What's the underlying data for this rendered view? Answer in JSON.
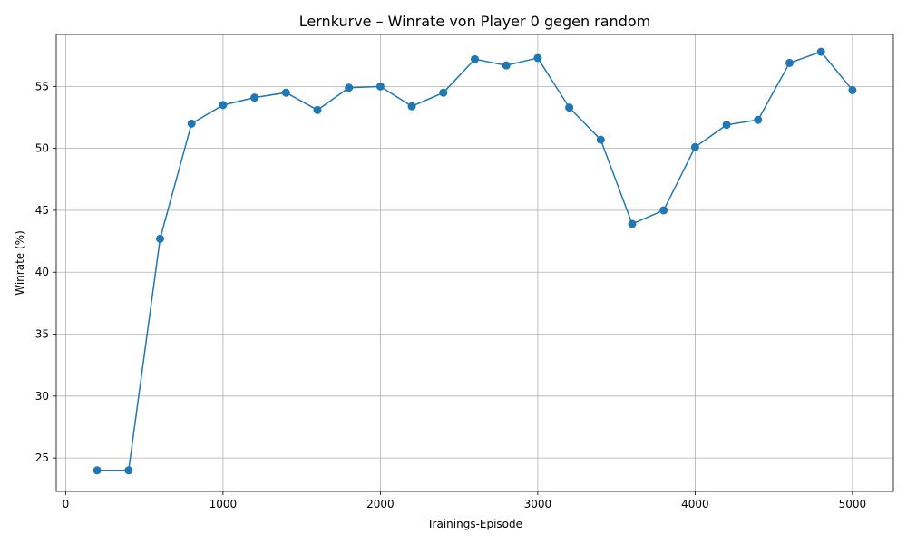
{
  "chart_data": {
    "type": "line",
    "title": "Lernkurve – Winrate von Player 0 gegen random",
    "xlabel": "Trainings-Episode",
    "ylabel": "Winrate (%)",
    "xlim": [
      -60,
      5260
    ],
    "ylim": [
      22.3,
      59.2
    ],
    "xticks": [
      0,
      1000,
      2000,
      3000,
      4000,
      5000
    ],
    "yticks": [
      25,
      30,
      35,
      40,
      45,
      50,
      55
    ],
    "grid": true,
    "series_color": "#1f77b4",
    "marker": "circle",
    "x": [
      200,
      400,
      600,
      800,
      1000,
      1200,
      1400,
      1600,
      1800,
      2000,
      2200,
      2400,
      2600,
      2800,
      3000,
      3200,
      3400,
      3600,
      3800,
      4000,
      4200,
      4400,
      4600,
      4800,
      5000
    ],
    "y": [
      24.0,
      24.0,
      42.7,
      52.0,
      53.5,
      54.1,
      54.5,
      53.1,
      54.9,
      55.0,
      53.4,
      54.5,
      57.2,
      56.7,
      57.3,
      53.3,
      50.7,
      43.9,
      45.0,
      50.1,
      51.9,
      52.3,
      56.9,
      57.8,
      54.7
    ]
  }
}
